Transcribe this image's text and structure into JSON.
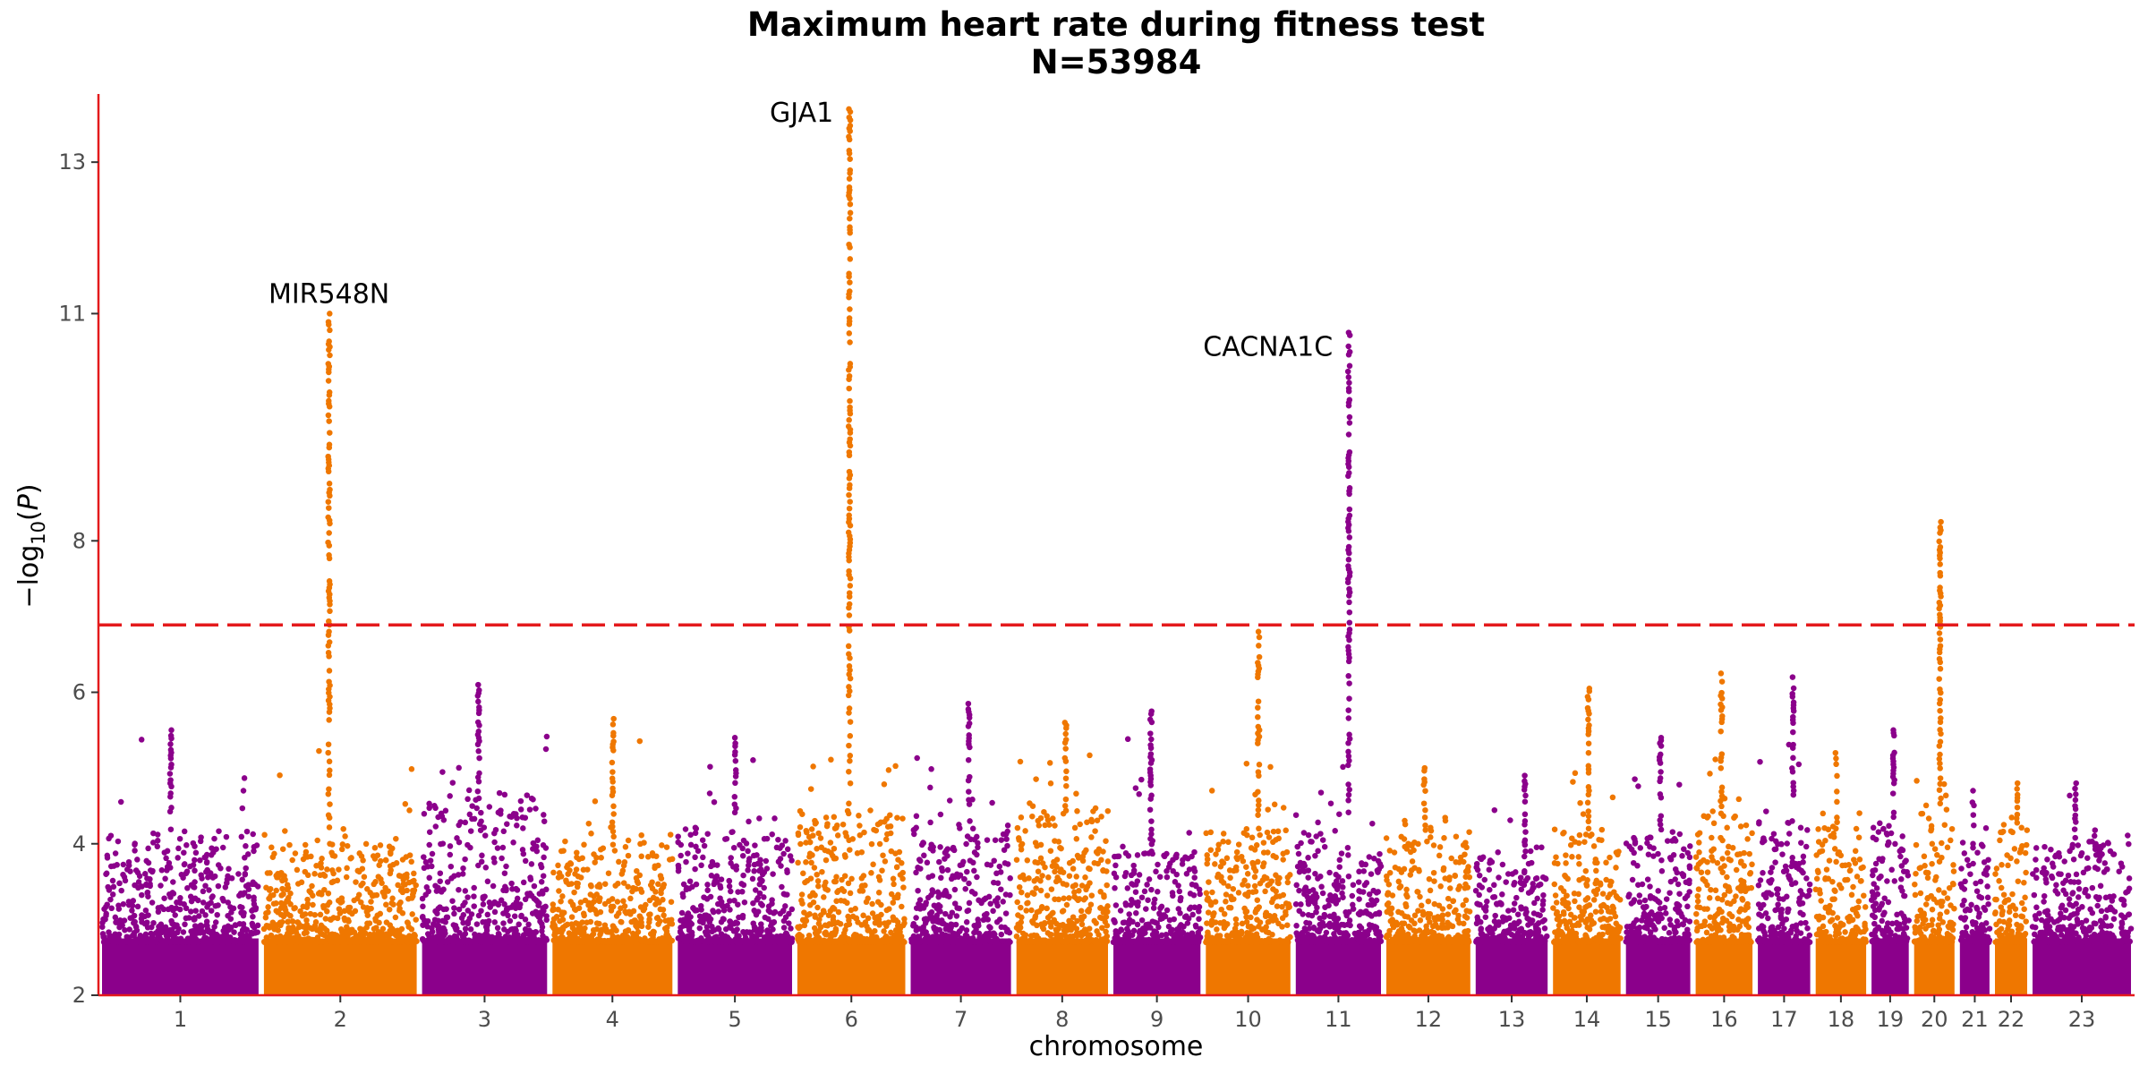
{
  "chart_data": {
    "type": "scatter",
    "subtype": "manhattan",
    "title": "Maximum heart rate during fitness test",
    "subtitle": "N=53984",
    "xlabel": "chromosome",
    "ylabel": "−log10(P)",
    "ylim": [
      2,
      13.9
    ],
    "yticks": [
      2,
      4,
      6,
      8,
      11,
      13
    ],
    "grid": false,
    "legend": "none",
    "significance_threshold": 6.89,
    "colors": {
      "odd_chromosome": "#8b008b",
      "even_chromosome": "#ef7700",
      "threshold_line": "#e41a1c",
      "axis_line": "#e41a1c"
    },
    "chromosomes": [
      {
        "label": "1",
        "length": 248,
        "background_max": 4.1,
        "peak": 5.5
      },
      {
        "label": "2",
        "length": 242,
        "background_max": 4.0,
        "peak": 11.0
      },
      {
        "label": "3",
        "length": 198,
        "background_max": 4.6,
        "peak": 6.1
      },
      {
        "label": "4",
        "length": 190,
        "background_max": 4.0,
        "peak": 5.65
      },
      {
        "label": "5",
        "length": 181,
        "background_max": 4.2,
        "peak": 5.4
      },
      {
        "label": "6",
        "length": 171,
        "background_max": 4.4,
        "peak": 13.7
      },
      {
        "label": "7",
        "length": 159,
        "background_max": 4.3,
        "peak": 5.85
      },
      {
        "label": "8",
        "length": 145,
        "background_max": 4.5,
        "peak": 5.6
      },
      {
        "label": "9",
        "length": 138,
        "background_max": 3.9,
        "peak": 5.75
      },
      {
        "label": "10",
        "length": 134,
        "background_max": 4.2,
        "peak": 6.8
      },
      {
        "label": "11",
        "length": 135,
        "background_max": 4.2,
        "peak": 10.75
      },
      {
        "label": "12",
        "length": 133,
        "background_max": 4.1,
        "peak": 5.0
      },
      {
        "label": "13",
        "length": 114,
        "background_max": 3.9,
        "peak": 4.9
      },
      {
        "label": "14",
        "length": 107,
        "background_max": 4.2,
        "peak": 6.05
      },
      {
        "label": "15",
        "length": 102,
        "background_max": 4.1,
        "peak": 5.4
      },
      {
        "label": "16",
        "length": 90,
        "background_max": 4.4,
        "peak": 6.25
      },
      {
        "label": "17",
        "length": 83,
        "background_max": 4.3,
        "peak": 6.2
      },
      {
        "label": "18",
        "length": 80,
        "background_max": 4.2,
        "peak": 5.2
      },
      {
        "label": "19",
        "length": 59,
        "background_max": 4.2,
        "peak": 5.5
      },
      {
        "label": "20",
        "length": 64,
        "background_max": 4.6,
        "peak": 8.25
      },
      {
        "label": "21",
        "length": 47,
        "background_max": 4.0,
        "peak": 4.7
      },
      {
        "label": "22",
        "length": 51,
        "background_max": 4.2,
        "peak": 4.8
      },
      {
        "label": "23",
        "length": 156,
        "background_max": 4.0,
        "peak": 4.8
      }
    ],
    "annotations": [
      {
        "text": "MIR548N",
        "chromosome": "2",
        "value": 11.0
      },
      {
        "text": "GJA1",
        "chromosome": "6",
        "value": 13.7
      },
      {
        "text": "CACNA1C",
        "chromosome": "11",
        "value": 10.75
      }
    ]
  }
}
